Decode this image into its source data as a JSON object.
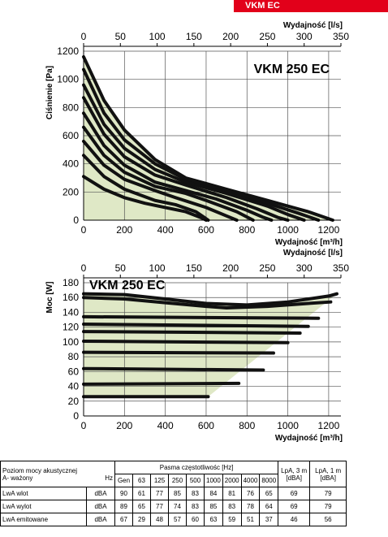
{
  "header": {
    "tag": "VKM EC"
  },
  "chart_data": [
    {
      "type": "line",
      "title": "VKM 250 EC",
      "xlabel": "Wydajność [m³/h]",
      "ylabel": "Ciśnienie [Pa]",
      "x2label": "Wydajność [l/s]",
      "xlim": [
        0,
        1260
      ],
      "ylim": [
        0,
        1200
      ],
      "x_ticks": [
        "0",
        "200",
        "400",
        "600",
        "800",
        "1000",
        "1200"
      ],
      "y_ticks": [
        "0",
        "200",
        "400",
        "600",
        "800",
        "1000",
        "1200"
      ],
      "x2_ticks": [
        "0",
        "50",
        "100",
        "150",
        "200",
        "250",
        "300",
        "350"
      ],
      "fill": "#dfe8c6",
      "series": [
        {
          "values": [
            [
              0,
              1160
            ],
            [
              100,
              850
            ],
            [
              200,
              640
            ],
            [
              350,
              430
            ],
            [
              500,
              300
            ],
            [
              700,
              220
            ],
            [
              900,
              140
            ],
            [
              1100,
              60
            ],
            [
              1220,
              0
            ]
          ]
        },
        {
          "values": [
            [
              0,
              1070
            ],
            [
              100,
              760
            ],
            [
              200,
              570
            ],
            [
              350,
              400
            ],
            [
              500,
              290
            ],
            [
              700,
              210
            ],
            [
              900,
              120
            ],
            [
              1050,
              50
            ],
            [
              1150,
              0
            ]
          ]
        },
        {
          "values": [
            [
              0,
              960
            ],
            [
              100,
              680
            ],
            [
              200,
              510
            ],
            [
              350,
              360
            ],
            [
              500,
              270
            ],
            [
              700,
              190
            ],
            [
              900,
              100
            ],
            [
              1000,
              40
            ],
            [
              1080,
              0
            ]
          ]
        },
        {
          "values": [
            [
              0,
              870
            ],
            [
              100,
              610
            ],
            [
              200,
              450
            ],
            [
              350,
              320
            ],
            [
              500,
              250
            ],
            [
              700,
              160
            ],
            [
              850,
              80
            ],
            [
              950,
              20
            ],
            [
              1000,
              0
            ]
          ]
        },
        {
          "values": [
            [
              0,
              760
            ],
            [
              100,
              530
            ],
            [
              200,
              390
            ],
            [
              350,
              270
            ],
            [
              500,
              210
            ],
            [
              650,
              150
            ],
            [
              800,
              70
            ],
            [
              880,
              20
            ],
            [
              920,
              0
            ]
          ]
        },
        {
          "values": [
            [
              0,
              660
            ],
            [
              100,
              460
            ],
            [
              200,
              340
            ],
            [
              350,
              240
            ],
            [
              500,
              190
            ],
            [
              600,
              140
            ],
            [
              750,
              60
            ],
            [
              830,
              0
            ]
          ]
        },
        {
          "values": [
            [
              0,
              560
            ],
            [
              100,
              390
            ],
            [
              200,
              290
            ],
            [
              350,
              210
            ],
            [
              450,
              160
            ],
            [
              600,
              90
            ],
            [
              700,
              30
            ],
            [
              750,
              0
            ]
          ]
        },
        {
          "values": [
            [
              0,
              460
            ],
            [
              100,
              310
            ],
            [
              200,
              220
            ],
            [
              350,
              140
            ],
            [
              450,
              110
            ],
            [
              550,
              60
            ],
            [
              610,
              0
            ]
          ]
        },
        {
          "values": [
            [
              0,
              310
            ],
            [
              100,
              220
            ],
            [
              200,
              160
            ],
            [
              300,
              120
            ],
            [
              400,
              90
            ],
            [
              500,
              60
            ],
            [
              580,
              15
            ],
            [
              600,
              0
            ]
          ]
        }
      ]
    },
    {
      "type": "line",
      "title": "VKM 250 EC",
      "xlabel": "Wydajność [m³/h]",
      "ylabel": "Moc [W]",
      "x2label": "Wydajność [l/s]",
      "xlim": [
        0,
        1260
      ],
      "ylim": [
        0,
        180
      ],
      "x_ticks": [
        "0",
        "200",
        "400",
        "600",
        "800",
        "1000",
        "1200"
      ],
      "y_ticks": [
        "0",
        "20",
        "40",
        "60",
        "80",
        "100",
        "120",
        "140",
        "160",
        "180"
      ],
      "x2_ticks": [
        "0",
        "50",
        "100",
        "150",
        "200",
        "250",
        "300",
        "350"
      ],
      "fill": "#dfe8c6",
      "series": [
        {
          "values": [
            [
              0,
              165
            ],
            [
              200,
              164
            ],
            [
              400,
              158
            ],
            [
              600,
              152
            ],
            [
              800,
              150
            ],
            [
              1000,
              154
            ],
            [
              1200,
              162
            ],
            [
              1240,
              165
            ]
          ]
        },
        {
          "values": [
            [
              0,
              160
            ],
            [
              200,
              158
            ],
            [
              400,
              153
            ],
            [
              600,
              148
            ],
            [
              700,
              146
            ],
            [
              900,
              148
            ],
            [
              1100,
              152
            ],
            [
              1210,
              154
            ]
          ]
        },
        {
          "values": [
            [
              0,
              134
            ],
            [
              1150,
              132
            ]
          ]
        },
        {
          "values": [
            [
              0,
              124
            ],
            [
              1100,
              121
            ]
          ]
        },
        {
          "values": [
            [
              0,
              114
            ],
            [
              1060,
              112
            ]
          ]
        },
        {
          "values": [
            [
              0,
              101
            ],
            [
              1000,
              99
            ]
          ]
        },
        {
          "values": [
            [
              0,
              86
            ],
            [
              930,
              85
            ]
          ]
        },
        {
          "values": [
            [
              0,
              64
            ],
            [
              880,
              62
            ]
          ]
        },
        {
          "values": [
            [
              0,
              43
            ],
            [
              760,
              44
            ]
          ]
        },
        {
          "values": [
            [
              0,
              26
            ],
            [
              610,
              26
            ]
          ]
        }
      ]
    }
  ],
  "table": {
    "head_left": [
      "Poziom mocy akustycznej",
      "A- ważony"
    ],
    "bands_title": "Pasma częstotliwośc [Hz]",
    "lpa3": [
      "LpA, 3 m",
      "[dBA]"
    ],
    "lpa1": [
      "LpA, 1 m",
      "[dBA]"
    ],
    "unit_header": "Hz",
    "bands": [
      "Gen",
      "63",
      "125",
      "250",
      "500",
      "1000",
      "2000",
      "4000",
      "8000"
    ],
    "rows": [
      {
        "label": "LwA wlot",
        "unit": "dBA",
        "values": [
          "90",
          "61",
          "77",
          "85",
          "83",
          "84",
          "81",
          "76",
          "65"
        ],
        "lpa3": "69",
        "lpa1": "79"
      },
      {
        "label": "LwA wylot",
        "unit": "dBA",
        "values": [
          "89",
          "65",
          "77",
          "74",
          "83",
          "85",
          "83",
          "78",
          "64"
        ],
        "lpa3": "69",
        "lpa1": "79"
      },
      {
        "label": "LwA emitowane",
        "unit": "dBA",
        "values": [
          "67",
          "29",
          "48",
          "57",
          "60",
          "63",
          "59",
          "51",
          "37"
        ],
        "lpa3": "46",
        "lpa1": "56"
      }
    ]
  }
}
